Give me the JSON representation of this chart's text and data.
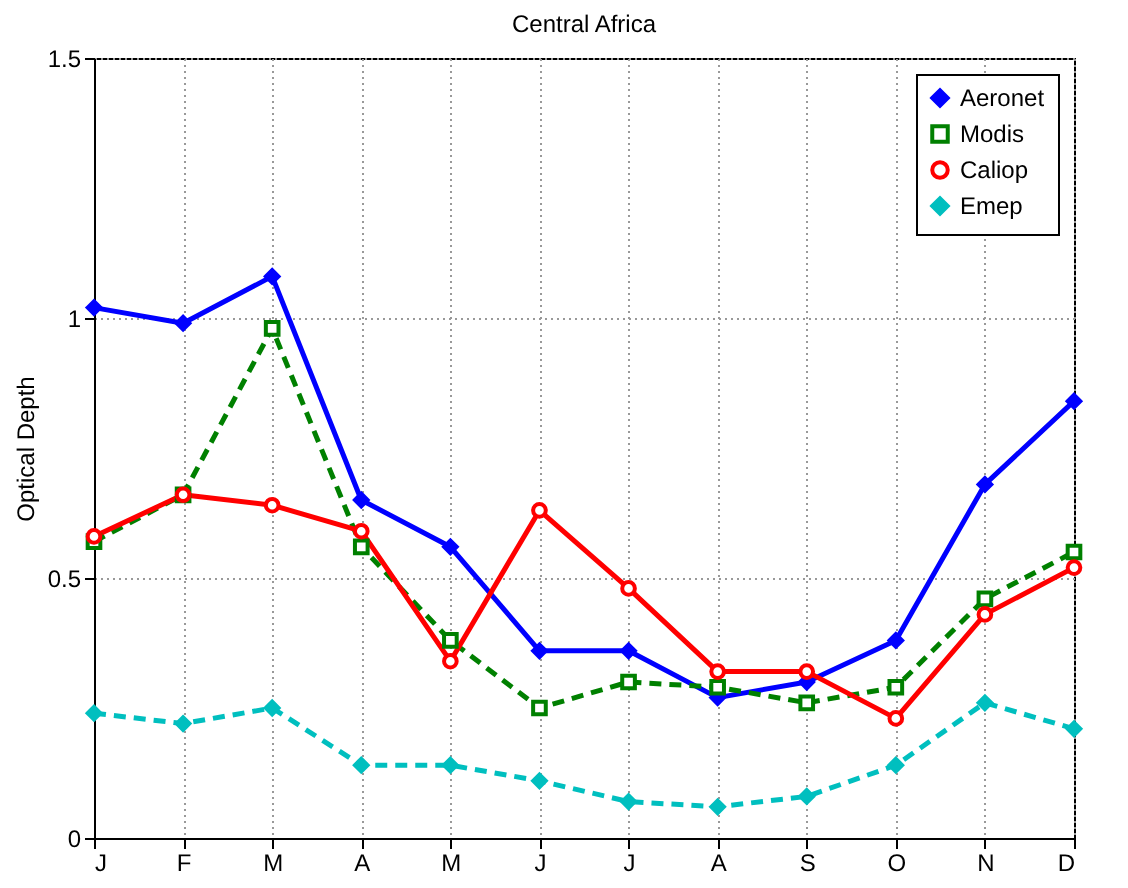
{
  "chart_data": {
    "type": "line",
    "title": "Central Africa",
    "ylabel": "Optical Depth",
    "categories": [
      "J",
      "F",
      "M",
      "A",
      "M",
      "J",
      "J",
      "A",
      "S",
      "O",
      "N",
      "D"
    ],
    "ylim": [
      0,
      1.5
    ],
    "yticks": [
      {
        "value": 0,
        "label": "0"
      },
      0.5,
      {
        "value": 1,
        "label": "1"
      },
      1.5
    ],
    "grid": true,
    "legend": "top right",
    "series": [
      {
        "name": "Aeronet",
        "color": "#0000ff",
        "marker": "diamond",
        "line_style": "solid",
        "values": [
          1.02,
          0.99,
          1.08,
          0.65,
          0.56,
          0.36,
          0.36,
          0.27,
          0.3,
          0.38,
          0.68,
          0.84
        ]
      },
      {
        "name": "Modis",
        "color": "#008000",
        "marker": "square",
        "line_style": "dashed",
        "values": [
          0.57,
          0.66,
          0.98,
          0.56,
          0.38,
          0.25,
          0.3,
          0.29,
          0.26,
          0.29,
          0.46,
          0.55
        ]
      },
      {
        "name": "Caliop",
        "color": "#ff0000",
        "marker": "circle",
        "line_style": "solid",
        "values": [
          0.58,
          0.66,
          0.64,
          0.59,
          0.34,
          0.63,
          0.48,
          0.32,
          0.32,
          0.23,
          0.43,
          0.52
        ]
      },
      {
        "name": "Emep",
        "color": "#00bfbf",
        "marker": "diamond",
        "line_style": "dashed",
        "values": [
          0.24,
          0.22,
          0.25,
          0.14,
          0.14,
          0.11,
          0.07,
          0.06,
          0.08,
          0.14,
          0.26,
          0.21
        ]
      }
    ]
  }
}
